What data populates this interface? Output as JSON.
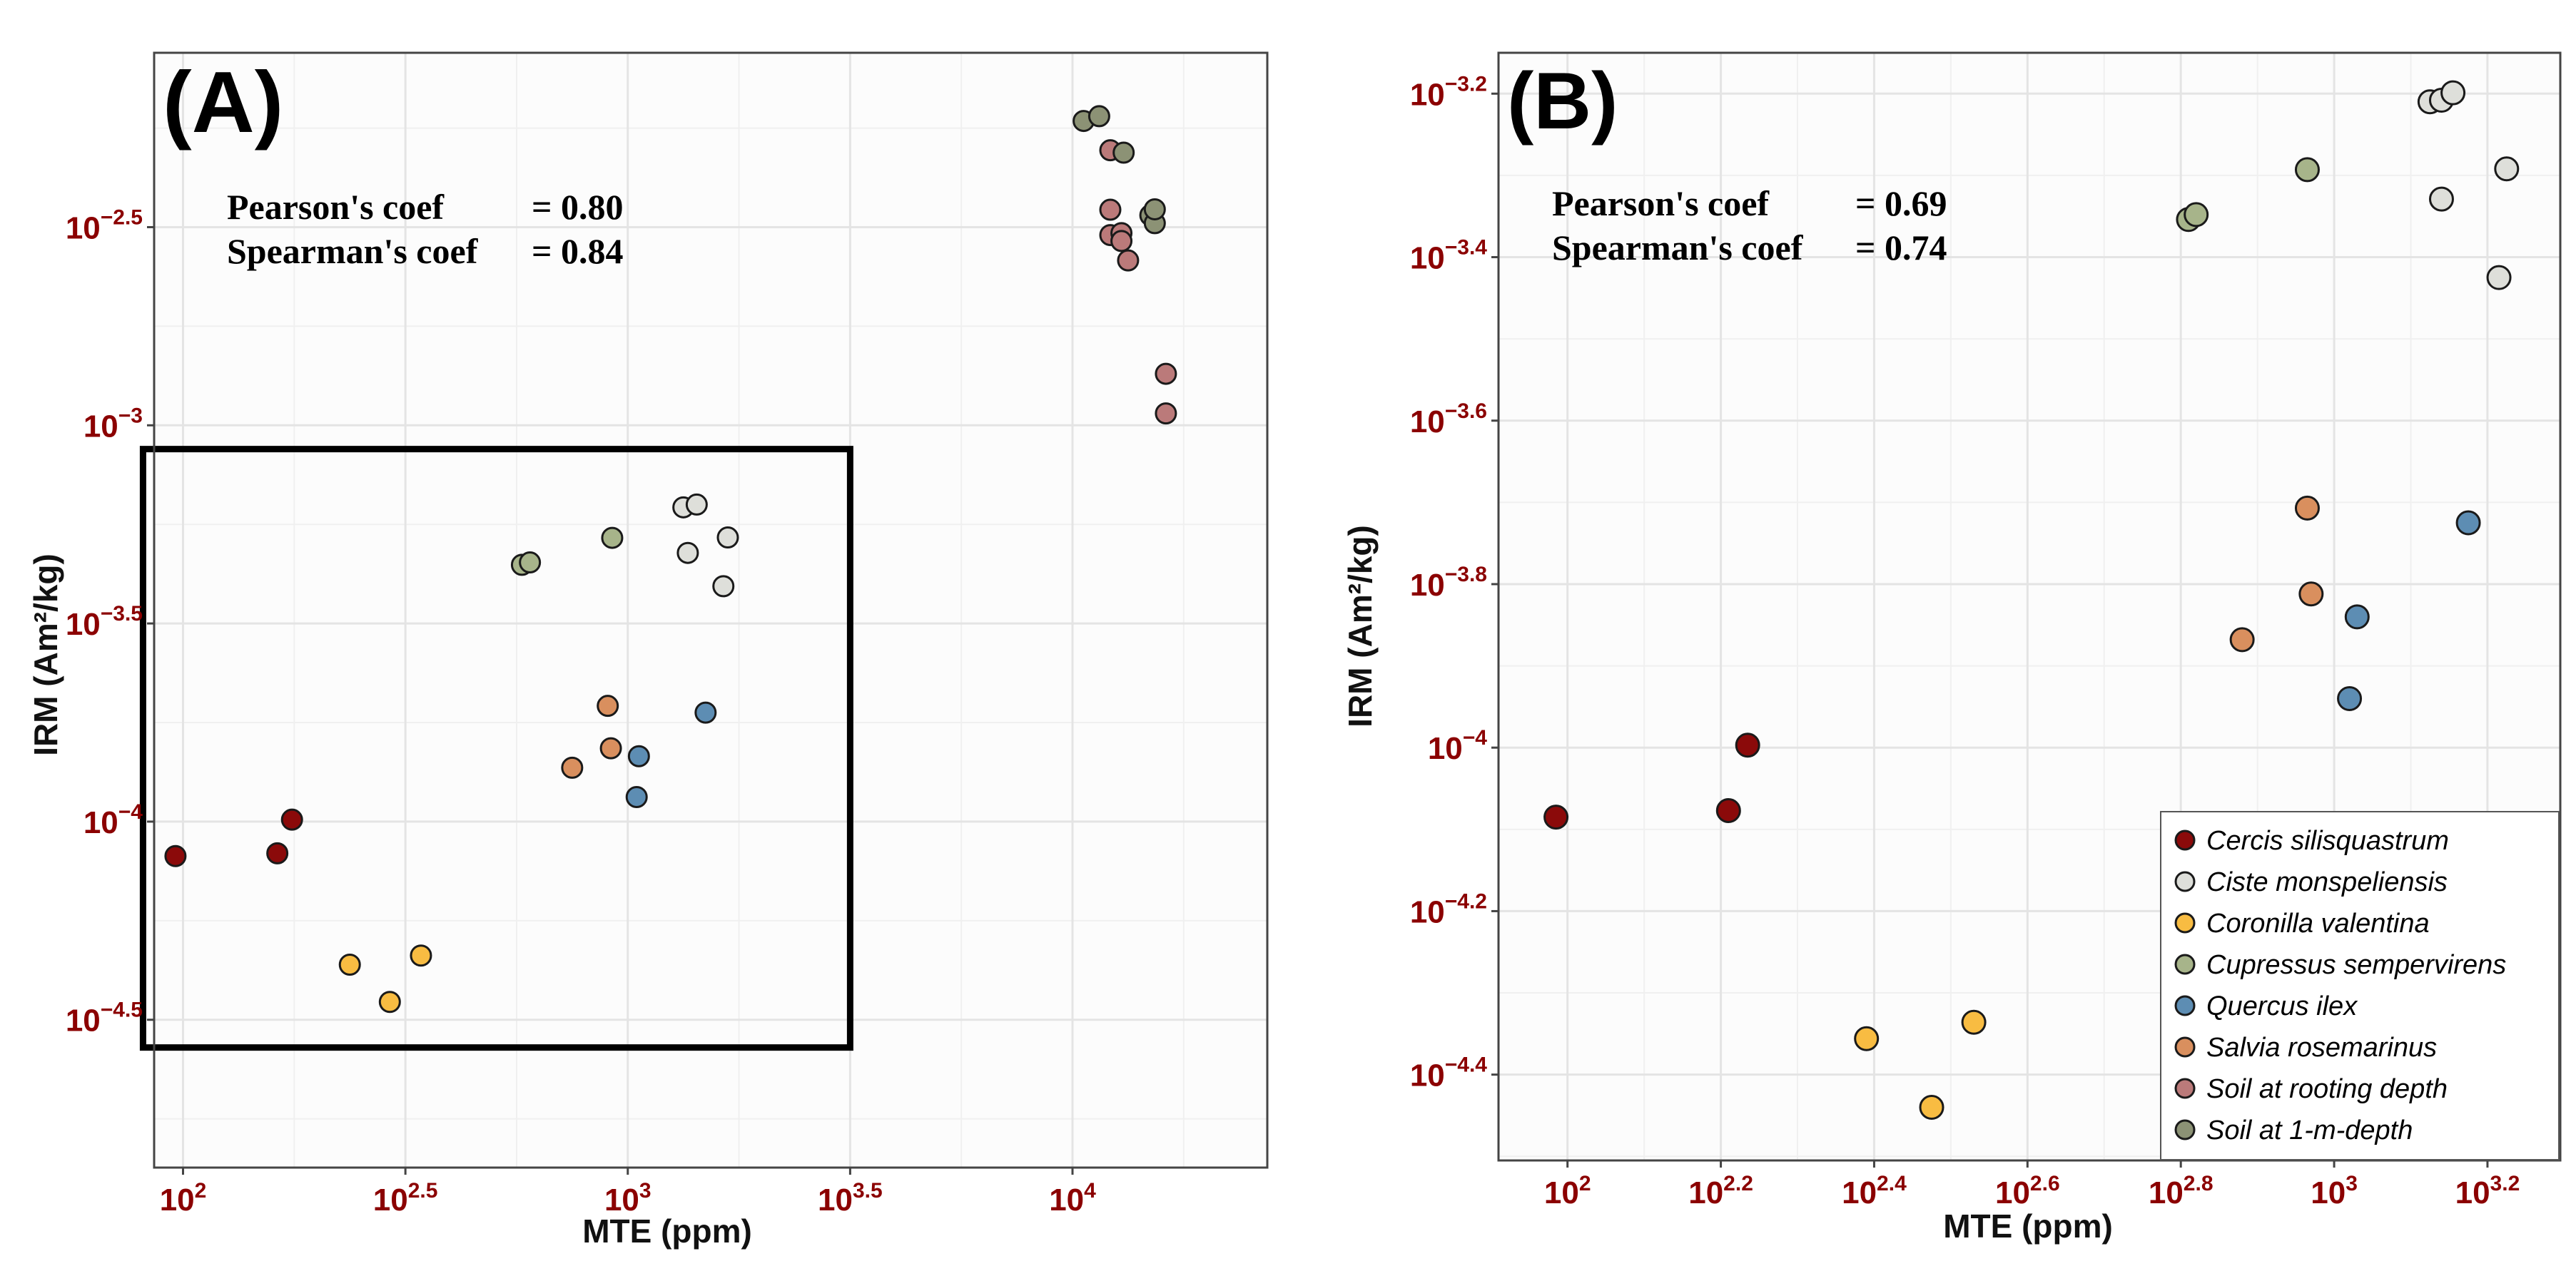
{
  "colors": {
    "Cercis silisquastrum": "#8b0a0a",
    "Ciste monspeliensis": "#dedfda",
    "Coronilla valentina": "#f8bc42",
    "Cupressus sempervirens": "#a7b48a",
    "Quercus ilex": "#5d8db3",
    "Salvia rosemarinus": "#d98f5e",
    "Soil at rooting depth": "#bb7a7a",
    "Soil at 1-m-depth": "#8c9275"
  },
  "legend": {
    "items": [
      {
        "label": "Cercis silisquastrum",
        "color": "#8b0a0a"
      },
      {
        "label": "Ciste monspeliensis",
        "color": "#dedfda"
      },
      {
        "label": "Coronilla valentina",
        "color": "#f8bc42"
      },
      {
        "label": "Cupressus sempervirens",
        "color": "#a7b48a"
      },
      {
        "label": "Quercus ilex",
        "color": "#5d8db3"
      },
      {
        "label": "Salvia rosemarinus",
        "color": "#d98f5e"
      },
      {
        "label": "Soil at rooting depth",
        "color": "#bb7a7a"
      },
      {
        "label": "Soil at 1-m-depth",
        "color": "#8c9275"
      }
    ]
  },
  "chart_data": [
    {
      "type": "scatter",
      "panel_label": "(A)",
      "xlabel": "MTE (ppm)",
      "ylabel": "IRM (Am²/kg)",
      "x_scale": "log10",
      "y_scale": "log10",
      "xlim_log": [
        1.935,
        4.438
      ],
      "ylim_log": [
        -4.873,
        -2.06
      ],
      "x_ticks": [
        {
          "base": "10",
          "exp": "2",
          "value": 2
        },
        {
          "base": "10",
          "exp": "2.5",
          "value": 2.5
        },
        {
          "base": "10",
          "exp": "3",
          "value": 3
        },
        {
          "base": "10",
          "exp": "3.5",
          "value": 3.5
        },
        {
          "base": "10",
          "exp": "4",
          "value": 4
        }
      ],
      "y_ticks": [
        {
          "base": "10",
          "exp": "−2.5",
          "value": -2.5
        },
        {
          "base": "10",
          "exp": "−3",
          "value": -3
        },
        {
          "base": "10",
          "exp": "−3.5",
          "value": -3.5
        },
        {
          "base": "10",
          "exp": "−4",
          "value": -4
        },
        {
          "base": "10",
          "exp": "−4.5",
          "value": -4.5
        }
      ],
      "annotations": [
        {
          "label": "Pearson's coef",
          "value": "= 0.80"
        },
        {
          "label": "Spearman's coef",
          "value": "= 0.84"
        }
      ],
      "inset_box": {
        "x_range_log": [
          1.91,
          3.5
        ],
        "y_range_log": [
          -4.57,
          -3.06
        ]
      },
      "series": [
        {
          "name": "Cercis silisquastrum",
          "points": [
            [
              1.983,
              -4.087
            ],
            [
              2.212,
              -4.08
            ],
            [
              2.245,
              -3.995
            ]
          ]
        },
        {
          "name": "Ciste monspeliensis",
          "points": [
            [
              3.125,
              -3.207
            ],
            [
              3.155,
              -3.2
            ],
            [
              3.135,
              -3.322
            ],
            [
              3.225,
              -3.283
            ],
            [
              3.215,
              -3.406
            ]
          ]
        },
        {
          "name": "Coronilla valentina",
          "points": [
            [
              2.375,
              -4.361
            ],
            [
              2.535,
              -4.338
            ],
            [
              2.465,
              -4.455
            ]
          ]
        },
        {
          "name": "Cupressus sempervirens",
          "points": [
            [
              2.762,
              -3.352
            ],
            [
              2.78,
              -3.346
            ],
            [
              2.965,
              -3.284
            ]
          ]
        },
        {
          "name": "Quercus ilex",
          "points": [
            [
              3.175,
              -3.725
            ],
            [
              3.025,
              -3.835
            ],
            [
              3.02,
              -3.938
            ]
          ]
        },
        {
          "name": "Salvia rosemarinus",
          "points": [
            [
              2.955,
              -3.708
            ],
            [
              2.962,
              -3.815
            ],
            [
              2.875,
              -3.864
            ]
          ]
        },
        {
          "name": "Soil at rooting depth",
          "points": [
            [
              4.085,
              -2.306
            ],
            [
              4.085,
              -2.456
            ],
            [
              4.085,
              -2.52
            ],
            [
              4.11,
              -2.515
            ],
            [
              4.11,
              -2.535
            ],
            [
              4.125,
              -2.584
            ],
            [
              4.21,
              -2.87
            ],
            [
              4.21,
              -2.97
            ]
          ]
        },
        {
          "name": "Soil at 1-m-depth",
          "points": [
            [
              4.025,
              -2.232
            ],
            [
              4.06,
              -2.22
            ],
            [
              4.115,
              -2.312
            ],
            [
              4.175,
              -2.47
            ],
            [
              4.185,
              -2.49
            ],
            [
              4.185,
              -2.455
            ]
          ]
        }
      ]
    },
    {
      "type": "scatter",
      "panel_label": "(B)",
      "xlabel": "MTE (ppm)",
      "ylabel": "IRM (Am²/kg)",
      "x_scale": "log10",
      "y_scale": "log10",
      "xlim_log": [
        1.91,
        3.295
      ],
      "ylim_log": [
        -4.505,
        -3.15
      ],
      "x_ticks": [
        {
          "base": "10",
          "exp": "2",
          "value": 2
        },
        {
          "base": "10",
          "exp": "2.2",
          "value": 2.2
        },
        {
          "base": "10",
          "exp": "2.4",
          "value": 2.4
        },
        {
          "base": "10",
          "exp": "2.6",
          "value": 2.6
        },
        {
          "base": "10",
          "exp": "2.8",
          "value": 2.8
        },
        {
          "base": "10",
          "exp": "3",
          "value": 3
        },
        {
          "base": "10",
          "exp": "3.2",
          "value": 3.2
        }
      ],
      "y_ticks": [
        {
          "base": "10",
          "exp": "−3.2",
          "value": -3.2
        },
        {
          "base": "10",
          "exp": "−3.4",
          "value": -3.4
        },
        {
          "base": "10",
          "exp": "−3.6",
          "value": -3.6
        },
        {
          "base": "10",
          "exp": "−3.8",
          "value": -3.8
        },
        {
          "base": "10",
          "exp": "−4",
          "value": -4
        },
        {
          "base": "10",
          "exp": "−4.2",
          "value": -4.2
        },
        {
          "base": "10",
          "exp": "−4.4",
          "value": -4.4
        }
      ],
      "annotations": [
        {
          "label": "Pearson's coef",
          "value": "= 0.69"
        },
        {
          "label": "Spearman's coef",
          "value": "= 0.74"
        }
      ],
      "series": [
        {
          "name": "Cercis silisquastrum",
          "points": [
            [
              1.985,
              -4.085
            ],
            [
              2.21,
              -4.077
            ],
            [
              2.235,
              -3.997
            ]
          ]
        },
        {
          "name": "Ciste monspeliensis",
          "points": [
            [
              3.125,
              -3.21
            ],
            [
              3.14,
              -3.208
            ],
            [
              3.155,
              -3.199
            ],
            [
              3.14,
              -3.329
            ],
            [
              3.225,
              -3.292
            ],
            [
              3.215,
              -3.425
            ]
          ]
        },
        {
          "name": "Coronilla valentina",
          "points": [
            [
              2.39,
              -4.356
            ],
            [
              2.53,
              -4.336
            ],
            [
              2.475,
              -4.44
            ]
          ]
        },
        {
          "name": "Cupressus sempervirens",
          "points": [
            [
              2.81,
              -3.354
            ],
            [
              2.82,
              -3.348
            ],
            [
              2.965,
              -3.293
            ]
          ]
        },
        {
          "name": "Quercus ilex",
          "points": [
            [
              3.175,
              -3.725
            ],
            [
              3.03,
              -3.84
            ],
            [
              3.02,
              -3.94
            ]
          ]
        },
        {
          "name": "Salvia rosemarinus",
          "points": [
            [
              2.965,
              -3.707
            ],
            [
              2.97,
              -3.812
            ],
            [
              2.88,
              -3.868
            ]
          ]
        }
      ]
    }
  ]
}
